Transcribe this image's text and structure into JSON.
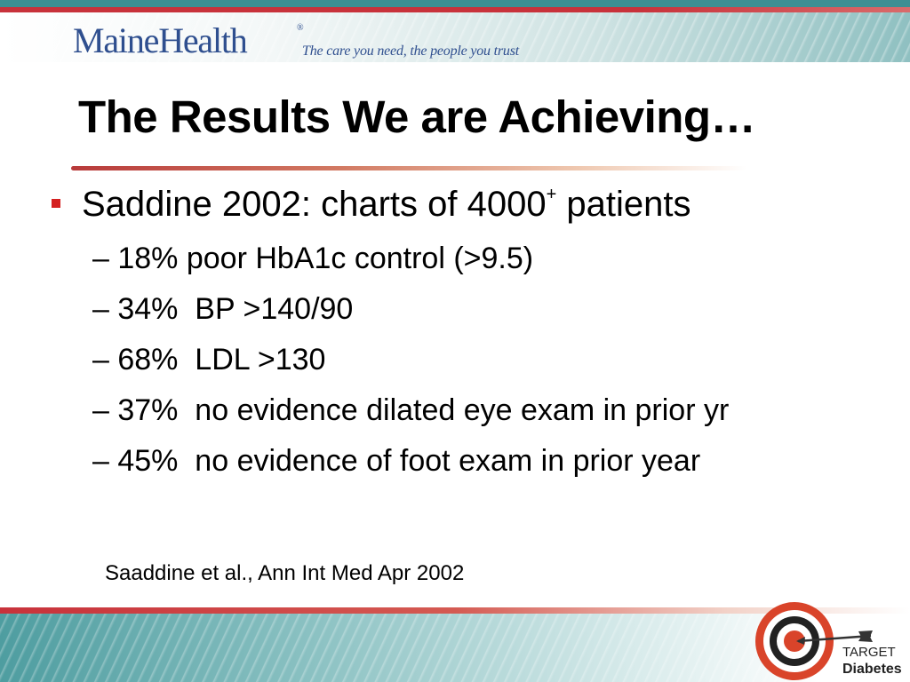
{
  "header": {
    "brand_name": "MaineHealth",
    "registered_mark": "®",
    "tagline": "The care you need, the people you trust"
  },
  "slide": {
    "title": "The Results We are Achieving…",
    "main_bullet": {
      "text_before": "Saddine 2002: charts of 4000",
      "superscript": "+",
      "text_after": " patients"
    },
    "sub_bullets": [
      "– 18% poor HbA1c control (>9.5)",
      "– 34%  BP >140/90",
      "– 68%  LDL >130",
      "– 37%  no evidence dilated eye exam in prior yr",
      "– 45%  no evidence of foot exam in prior year"
    ],
    "citation": "Saaddine et al., Ann Int Med Apr 2002"
  },
  "footer_logo": {
    "word1": "TARGET",
    "word2": "Diabetes",
    "icon": "target-arrow-icon"
  },
  "colors": {
    "brand_blue": "#2f4f8f",
    "accent_red": "#c8323b",
    "bullet_red": "#d42020",
    "teal": "#3d8f93"
  }
}
